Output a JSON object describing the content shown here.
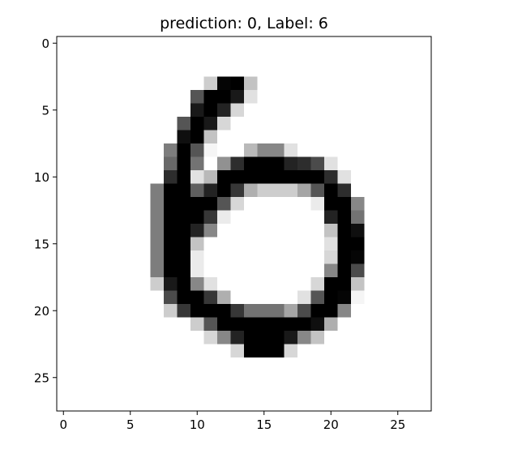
{
  "chart_data": {
    "type": "heatmap",
    "title": "prediction: 0, Label: 6",
    "colormap": "gray_r",
    "value_range": [
      0,
      255
    ],
    "rows": 28,
    "cols": 28,
    "xticks": [
      "0",
      "5",
      "10",
      "15",
      "20",
      "25"
    ],
    "yticks": [
      "0",
      "5",
      "10",
      "15",
      "20",
      "25"
    ],
    "xlim": [
      -0.5,
      27.5
    ],
    "ylim": [
      27.5,
      -0.5
    ],
    "pixels": [
      [
        0,
        0,
        0,
        0,
        0,
        0,
        0,
        0,
        0,
        0,
        0,
        0,
        0,
        0,
        0,
        0,
        0,
        0,
        0,
        0,
        0,
        0,
        0,
        0,
        0,
        0,
        0,
        0
      ],
      [
        0,
        0,
        0,
        0,
        0,
        0,
        0,
        0,
        0,
        0,
        0,
        0,
        0,
        0,
        0,
        0,
        0,
        0,
        0,
        0,
        0,
        0,
        0,
        0,
        0,
        0,
        0,
        0
      ],
      [
        0,
        0,
        0,
        0,
        0,
        0,
        0,
        0,
        0,
        0,
        0,
        0,
        0,
        0,
        0,
        0,
        0,
        0,
        0,
        0,
        0,
        0,
        0,
        0,
        0,
        0,
        0,
        0
      ],
      [
        0,
        0,
        0,
        0,
        0,
        0,
        0,
        0,
        0,
        0,
        0,
        50,
        250,
        255,
        60,
        0,
        0,
        0,
        0,
        0,
        0,
        0,
        0,
        0,
        0,
        0,
        0,
        0
      ],
      [
        0,
        0,
        0,
        0,
        0,
        0,
        0,
        0,
        0,
        0,
        170,
        255,
        255,
        230,
        30,
        0,
        0,
        0,
        0,
        0,
        0,
        0,
        0,
        0,
        0,
        0,
        0,
        0
      ],
      [
        0,
        0,
        0,
        0,
        0,
        0,
        0,
        0,
        0,
        0,
        230,
        255,
        220,
        40,
        0,
        0,
        0,
        0,
        0,
        0,
        0,
        0,
        0,
        0,
        0,
        0,
        0,
        0
      ],
      [
        0,
        0,
        0,
        0,
        0,
        0,
        0,
        0,
        0,
        170,
        255,
        230,
        40,
        0,
        0,
        0,
        0,
        0,
        0,
        0,
        0,
        0,
        0,
        0,
        0,
        0,
        0,
        0
      ],
      [
        0,
        0,
        0,
        0,
        0,
        0,
        0,
        0,
        0,
        240,
        255,
        60,
        0,
        0,
        0,
        0,
        0,
        0,
        0,
        0,
        0,
        0,
        0,
        0,
        0,
        0,
        0,
        0
      ],
      [
        0,
        0,
        0,
        0,
        0,
        0,
        0,
        0,
        130,
        255,
        170,
        10,
        0,
        0,
        70,
        120,
        120,
        30,
        0,
        0,
        0,
        0,
        0,
        0,
        0,
        0,
        0,
        0
      ],
      [
        0,
        0,
        0,
        0,
        0,
        0,
        0,
        0,
        150,
        255,
        140,
        0,
        110,
        210,
        255,
        255,
        255,
        220,
        210,
        180,
        30,
        0,
        0,
        0,
        0,
        0,
        0,
        0
      ],
      [
        0,
        0,
        0,
        0,
        0,
        0,
        0,
        0,
        210,
        255,
        30,
        70,
        255,
        255,
        255,
        255,
        255,
        255,
        255,
        255,
        210,
        30,
        0,
        0,
        0,
        0,
        0,
        0
      ],
      [
        0,
        0,
        0,
        0,
        0,
        0,
        0,
        130,
        255,
        255,
        160,
        220,
        255,
        200,
        80,
        50,
        50,
        50,
        90,
        170,
        255,
        210,
        0,
        0,
        0,
        0,
        0,
        0
      ],
      [
        0,
        0,
        0,
        0,
        0,
        0,
        0,
        130,
        255,
        255,
        255,
        255,
        170,
        40,
        0,
        0,
        0,
        0,
        0,
        20,
        255,
        255,
        120,
        0,
        0,
        0,
        0,
        0
      ],
      [
        0,
        0,
        0,
        0,
        0,
        0,
        0,
        130,
        255,
        255,
        255,
        200,
        20,
        0,
        0,
        0,
        0,
        0,
        0,
        0,
        220,
        255,
        140,
        0,
        0,
        0,
        0,
        0
      ],
      [
        0,
        0,
        0,
        0,
        0,
        0,
        0,
        130,
        255,
        255,
        220,
        120,
        0,
        0,
        0,
        0,
        0,
        0,
        0,
        0,
        60,
        255,
        240,
        0,
        0,
        0,
        0,
        0
      ],
      [
        0,
        0,
        0,
        0,
        0,
        0,
        0,
        130,
        255,
        255,
        60,
        0,
        0,
        0,
        0,
        0,
        0,
        0,
        0,
        0,
        30,
        255,
        255,
        0,
        0,
        0,
        0,
        0
      ],
      [
        0,
        0,
        0,
        0,
        0,
        0,
        0,
        130,
        255,
        255,
        20,
        0,
        0,
        0,
        0,
        0,
        0,
        0,
        0,
        0,
        40,
        255,
        250,
        0,
        0,
        0,
        0,
        0
      ],
      [
        0,
        0,
        0,
        0,
        0,
        0,
        0,
        130,
        255,
        255,
        20,
        0,
        0,
        0,
        0,
        0,
        0,
        0,
        0,
        0,
        120,
        255,
        180,
        0,
        0,
        0,
        0,
        0
      ],
      [
        0,
        0,
        0,
        0,
        0,
        0,
        0,
        50,
        230,
        255,
        120,
        30,
        0,
        0,
        0,
        0,
        0,
        0,
        0,
        40,
        255,
        255,
        60,
        0,
        0,
        0,
        0,
        0
      ],
      [
        0,
        0,
        0,
        0,
        0,
        0,
        0,
        0,
        180,
        255,
        255,
        200,
        80,
        0,
        0,
        0,
        0,
        0,
        30,
        170,
        255,
        250,
        10,
        0,
        0,
        0,
        0,
        0
      ],
      [
        0,
        0,
        0,
        0,
        0,
        0,
        0,
        0,
        50,
        200,
        255,
        255,
        255,
        200,
        140,
        140,
        140,
        90,
        180,
        255,
        255,
        120,
        0,
        0,
        0,
        0,
        0,
        0
      ],
      [
        0,
        0,
        0,
        0,
        0,
        0,
        0,
        0,
        0,
        0,
        50,
        170,
        255,
        255,
        255,
        255,
        255,
        255,
        255,
        240,
        80,
        0,
        0,
        0,
        0,
        0,
        0,
        0
      ],
      [
        0,
        0,
        0,
        0,
        0,
        0,
        0,
        0,
        0,
        0,
        0,
        40,
        120,
        220,
        255,
        255,
        255,
        230,
        120,
        60,
        0,
        0,
        0,
        0,
        0,
        0,
        0,
        0
      ],
      [
        0,
        0,
        0,
        0,
        0,
        0,
        0,
        0,
        0,
        0,
        0,
        0,
        0,
        40,
        255,
        255,
        255,
        40,
        0,
        0,
        0,
        0,
        0,
        0,
        0,
        0,
        0,
        0
      ],
      [
        0,
        0,
        0,
        0,
        0,
        0,
        0,
        0,
        0,
        0,
        0,
        0,
        0,
        0,
        0,
        0,
        0,
        0,
        0,
        0,
        0,
        0,
        0,
        0,
        0,
        0,
        0,
        0
      ],
      [
        0,
        0,
        0,
        0,
        0,
        0,
        0,
        0,
        0,
        0,
        0,
        0,
        0,
        0,
        0,
        0,
        0,
        0,
        0,
        0,
        0,
        0,
        0,
        0,
        0,
        0,
        0,
        0
      ],
      [
        0,
        0,
        0,
        0,
        0,
        0,
        0,
        0,
        0,
        0,
        0,
        0,
        0,
        0,
        0,
        0,
        0,
        0,
        0,
        0,
        0,
        0,
        0,
        0,
        0,
        0,
        0,
        0
      ],
      [
        0,
        0,
        0,
        0,
        0,
        0,
        0,
        0,
        0,
        0,
        0,
        0,
        0,
        0,
        0,
        0,
        0,
        0,
        0,
        0,
        0,
        0,
        0,
        0,
        0,
        0,
        0,
        0
      ]
    ]
  }
}
